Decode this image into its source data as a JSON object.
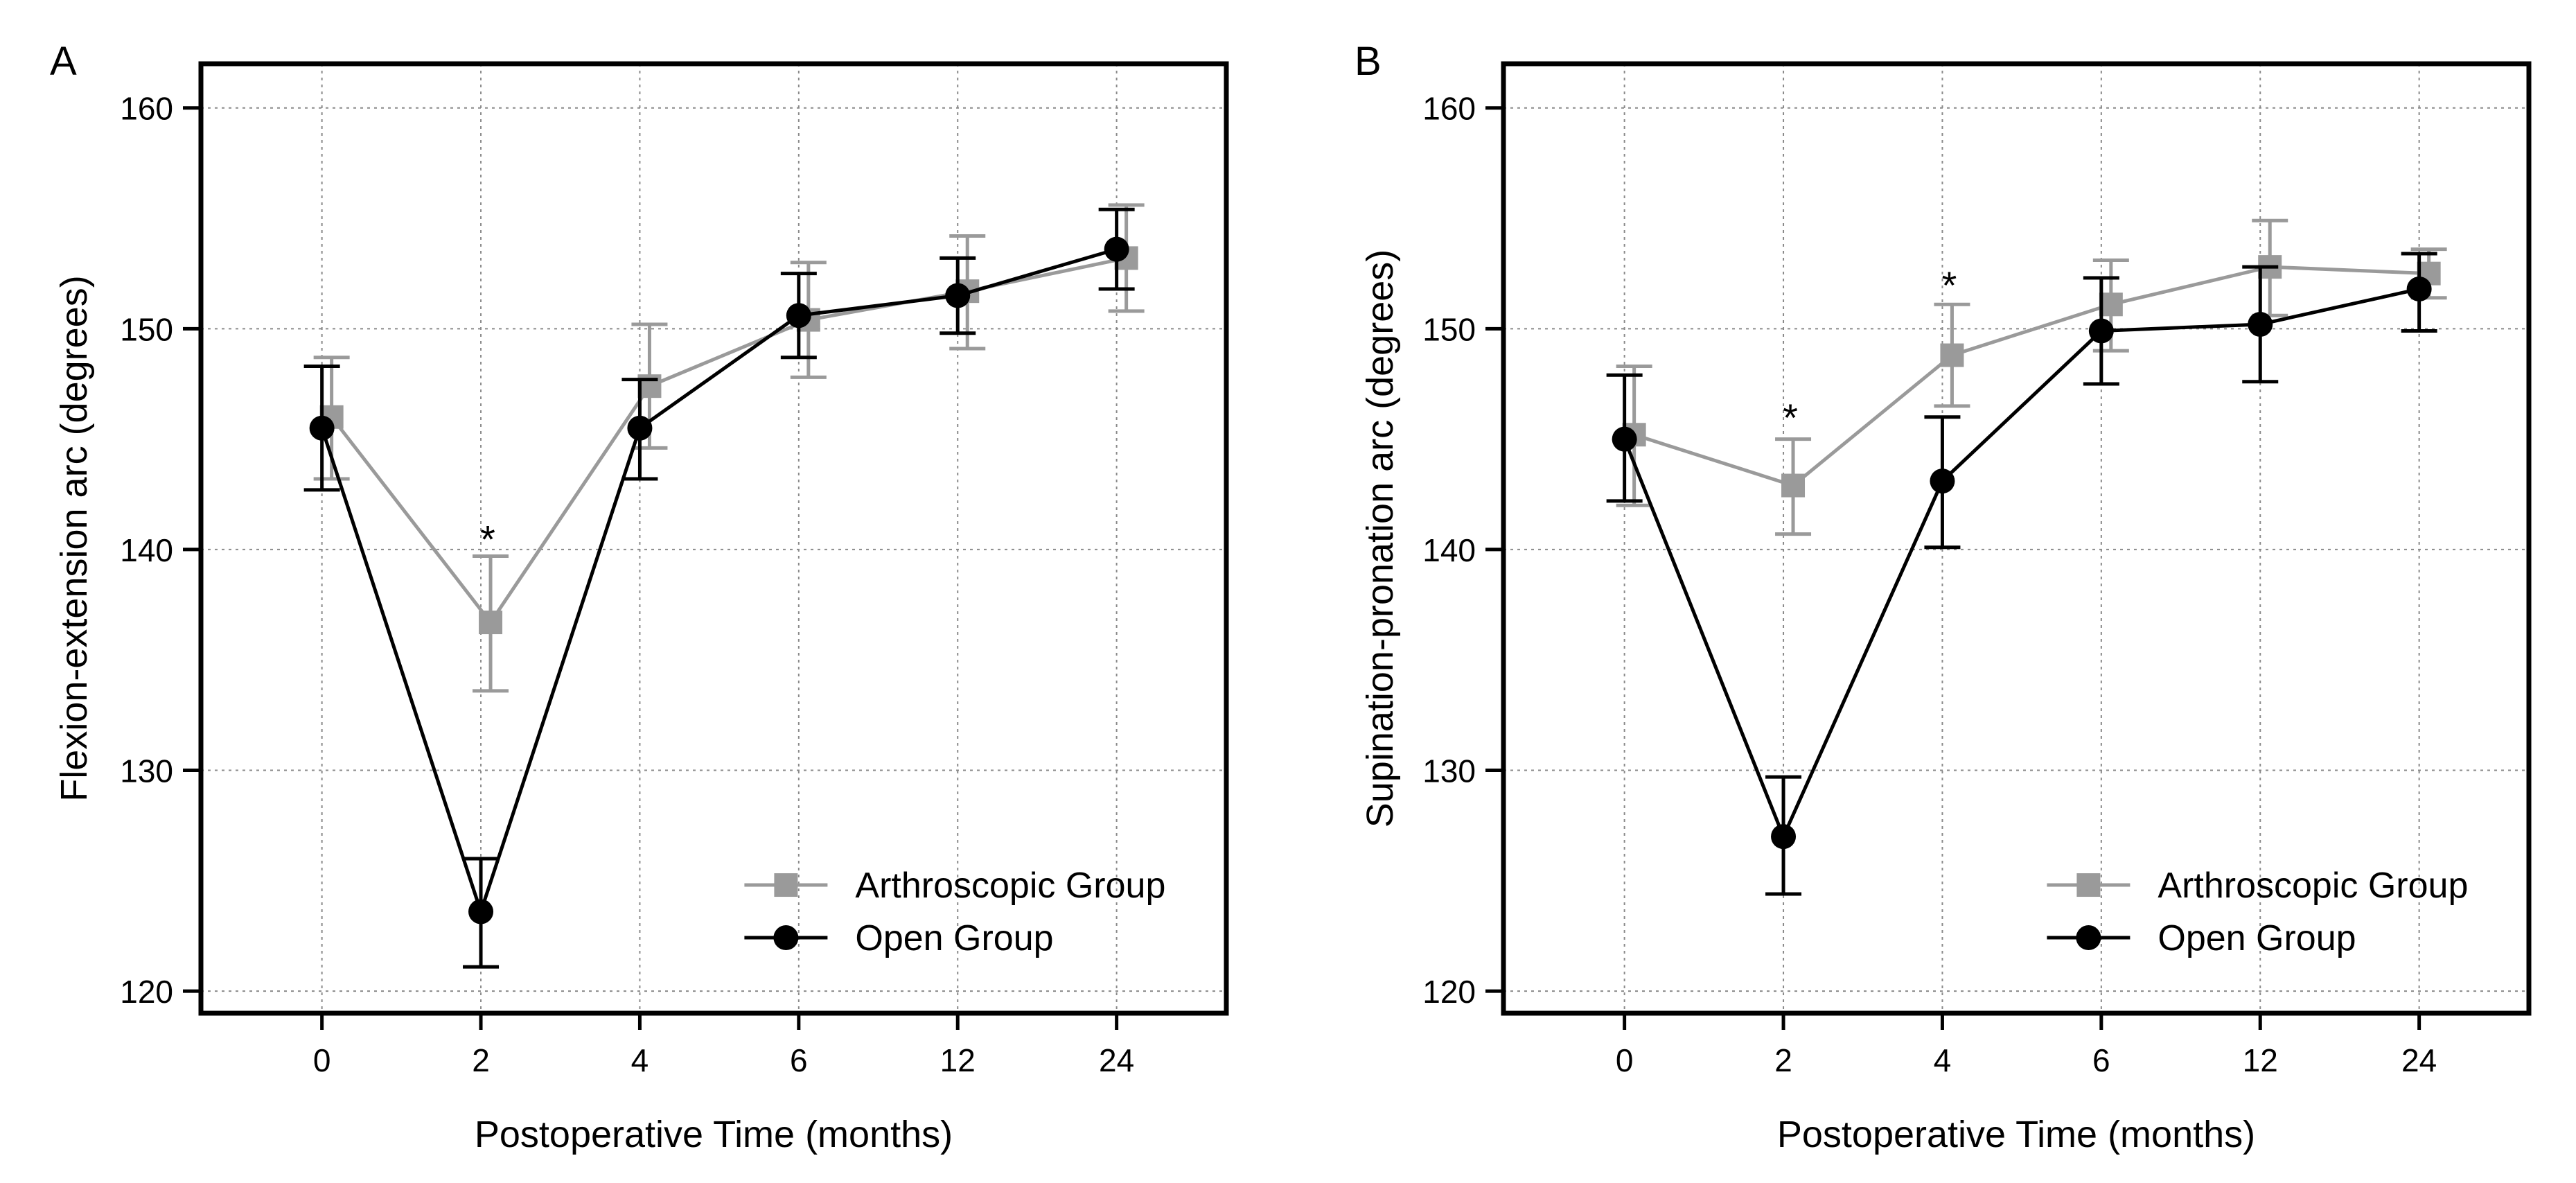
{
  "chart_data": [
    {
      "type": "line",
      "panel_label": "A",
      "title": "",
      "xlabel": "Postoperative Time (months)",
      "ylabel": "Flexion-extension arc (degrees)",
      "categories": [
        "0",
        "2",
        "4",
        "6",
        "12",
        "24"
      ],
      "ylim": [
        119,
        162
      ],
      "yticks": [
        120,
        130,
        140,
        150,
        160
      ],
      "grid": true,
      "legend_position": "bottom-right",
      "series": [
        {
          "name": "Arthroscopic Group",
          "marker": "square",
          "color": "#9a9a9a",
          "values": [
            146.0,
            136.7,
            147.4,
            150.4,
            151.7,
            153.2
          ],
          "err_upper": [
            148.7,
            139.7,
            150.2,
            153.0,
            154.2,
            155.6
          ],
          "err_lower": [
            143.2,
            133.6,
            144.6,
            147.8,
            149.1,
            150.8
          ]
        },
        {
          "name": "Open Group",
          "marker": "circle",
          "color": "#000000",
          "values": [
            145.5,
            123.6,
            145.5,
            150.6,
            151.5,
            153.6
          ],
          "err_upper": [
            148.3,
            126.0,
            147.7,
            152.5,
            153.2,
            155.4
          ],
          "err_lower": [
            142.7,
            121.1,
            143.2,
            148.7,
            149.8,
            151.8
          ]
        }
      ],
      "annotations": [
        {
          "category": "2",
          "value": 140.8,
          "text": "*"
        }
      ]
    },
    {
      "type": "line",
      "panel_label": "B",
      "title": "",
      "xlabel": "Postoperative Time (months)",
      "ylabel": "Supination-pronation arc (degrees)",
      "categories": [
        "0",
        "2",
        "4",
        "6",
        "12",
        "24"
      ],
      "ylim": [
        119,
        162
      ],
      "yticks": [
        120,
        130,
        140,
        150,
        160
      ],
      "grid": true,
      "legend_position": "bottom-right",
      "series": [
        {
          "name": "Arthroscopic Group",
          "marker": "square",
          "color": "#9a9a9a",
          "values": [
            145.2,
            142.9,
            148.8,
            151.1,
            152.8,
            152.5
          ],
          "err_upper": [
            148.3,
            145.0,
            151.1,
            153.1,
            154.9,
            153.6
          ],
          "err_lower": [
            142.0,
            140.7,
            146.5,
            149.0,
            150.6,
            151.4
          ]
        },
        {
          "name": "Open Group",
          "marker": "circle",
          "color": "#000000",
          "values": [
            145.0,
            127.0,
            143.1,
            149.9,
            150.2,
            151.8
          ],
          "err_upper": [
            147.9,
            129.7,
            146.0,
            152.3,
            152.8,
            153.4
          ],
          "err_lower": [
            142.2,
            124.4,
            140.1,
            147.5,
            147.6,
            149.9
          ]
        }
      ],
      "annotations": [
        {
          "category": "2",
          "value": 146.3,
          "text": "*"
        },
        {
          "category": "4",
          "value": 152.3,
          "text": "*"
        }
      ]
    }
  ]
}
